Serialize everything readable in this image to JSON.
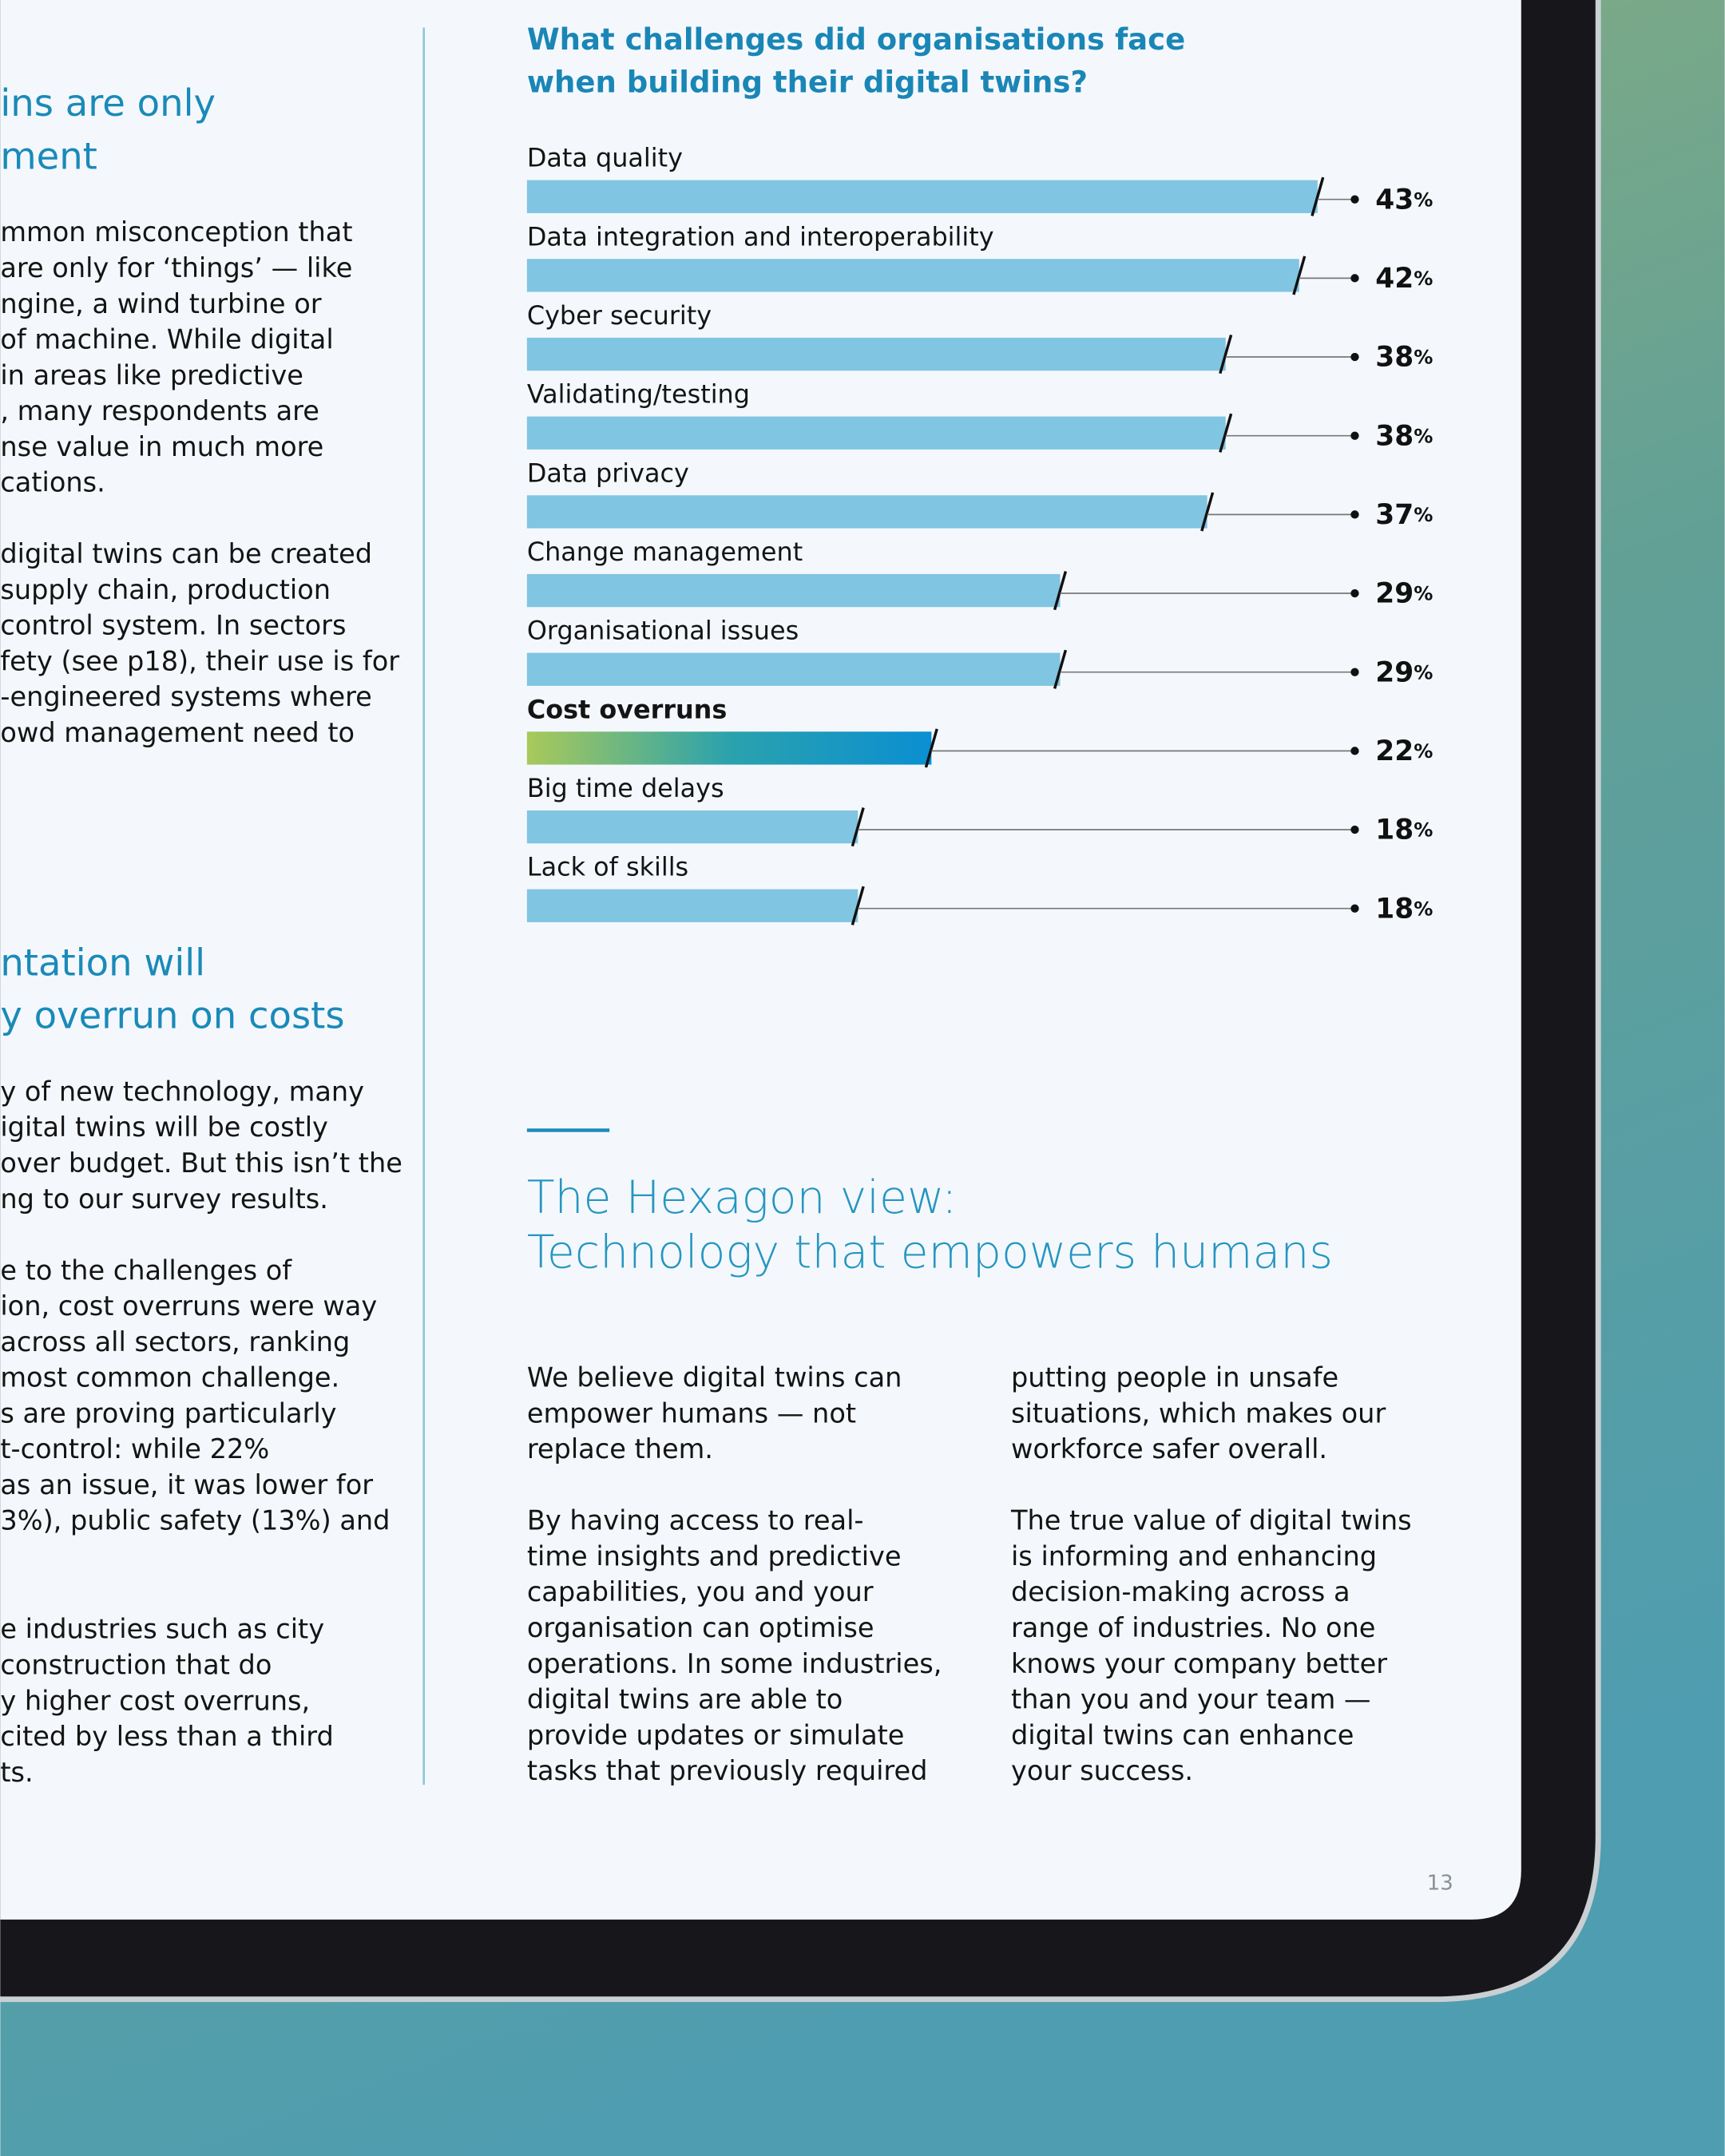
{
  "left_column": {
    "blocks": [
      {
        "kind": "heading",
        "lines": [
          "ins are only",
          "ment"
        ]
      },
      {
        "kind": "para",
        "lines": [
          "mmon misconception that",
          "are only for ‘things’ — like",
          "ngine, a wind turbine or",
          "of machine. While digital",
          "in areas like predictive",
          ", many respondents are",
          "nse value in much more",
          "cations."
        ]
      },
      {
        "kind": "para",
        "lines": [
          "digital twins can be created",
          "supply chain, production",
          "control system. In sectors",
          "fety (see p18), their use is for",
          "-engineered systems where",
          "owd management need to"
        ]
      },
      {
        "kind": "heading",
        "lines": [
          "ntation will",
          "y overrun on costs"
        ]
      },
      {
        "kind": "para",
        "lines": [
          "y of new technology, many",
          "igital twins will be costly",
          "over budget. But this isn’t the",
          "ng to our survey results."
        ]
      },
      {
        "kind": "para",
        "lines": [
          "e to the challenges of",
          "ion, cost overruns were way",
          "across all sectors, ranking",
          "most common challenge.",
          "s are proving particularly",
          "t-control: while 22%",
          "as an issue, it was lower for",
          "3%), public safety (13%) and"
        ]
      },
      {
        "kind": "para",
        "lines": [
          "e industries such as city",
          "construction that do",
          "y higher cost overruns,",
          "cited by less than a third",
          "ts."
        ]
      }
    ]
  },
  "chart_data": {
    "type": "bar",
    "orientation": "horizontal",
    "title": [
      "What challenges did organisations face",
      "when building their digital twins?"
    ],
    "categories": [
      "Data quality",
      "Data integration and interoperability",
      "Cyber security",
      "Validating/testing",
      "Data privacy",
      "Change management",
      "Organisational issues",
      "Cost overruns",
      "Big time delays",
      "Lack of skills"
    ],
    "values": [
      43,
      42,
      38,
      38,
      37,
      29,
      29,
      22,
      18,
      18
    ],
    "value_labels": [
      "43%",
      "42%",
      "38%",
      "38%",
      "37%",
      "29%",
      "29%",
      "22%",
      "18%",
      "18%"
    ],
    "color": "#80c5e1",
    "highlight_category": "Cost overruns"
  },
  "hexagon_view": {
    "heading": [
      "The Hexagon view:",
      "Technology that empowers humans"
    ],
    "columns": [
      [
        [
          "We believe digital twins can",
          "empower humans — not",
          "replace them."
        ],
        [
          "By having access to real-",
          "time insights and predictive",
          "capabilities, you and your",
          "organisation can optimise",
          "operations. In some industries,",
          "digital twins are able to",
          "provide updates or simulate",
          "tasks that previously required"
        ]
      ],
      [
        [
          "putting people in unsafe",
          "situations, which makes our",
          "workforce safer overall."
        ],
        [
          "The true value of digital twins",
          "is informing and enhancing",
          "decision-making across a",
          "range of industries. No one",
          "knows your company better",
          "than you and your team —",
          "digital twins can enhance",
          "your success."
        ]
      ]
    ]
  },
  "page_number": "13"
}
